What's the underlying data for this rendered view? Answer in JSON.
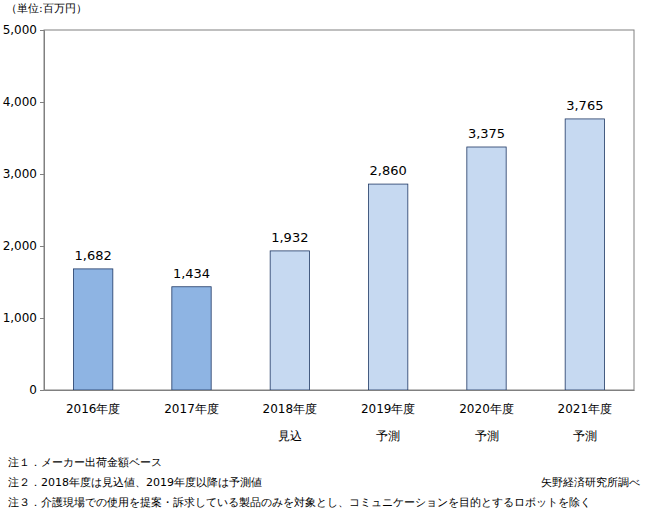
{
  "chart_data": {
    "type": "bar",
    "unit_label": "（単位:百万円）",
    "categories": [
      "2016年度",
      "2017年度",
      "2018年度",
      "2019年度",
      "2020年度",
      "2021年度"
    ],
    "category_sublabels": [
      null,
      null,
      "見込",
      "予測",
      "予測",
      "予測"
    ],
    "values": [
      1682,
      1434,
      1932,
      2860,
      3375,
      3765
    ],
    "value_labels": [
      "1,682",
      "1,434",
      "1,932",
      "2,860",
      "3,375",
      "3,765"
    ],
    "colors": [
      "#8eb4e3",
      "#8eb4e3",
      "#c6d9f1",
      "#c6d9f1",
      "#c6d9f1",
      "#c6d9f1"
    ],
    "data_labels": true,
    "grid": false,
    "ylim": [
      0,
      5000
    ],
    "yticks": [
      0,
      {
        "value": 1000,
        "label": "1,000"
      },
      {
        "value": 2000,
        "label": "2,000"
      },
      {
        "value": 3000,
        "label": "3,000"
      },
      {
        "value": 4000,
        "label": "4,000"
      },
      {
        "value": 5000,
        "label": "5,000"
      }
    ],
    "notes": [
      "注１．メーカー出荷金額ベース",
      "注２．2018年度は見込値、2019年度以降は予測値",
      "注３．介護現場での使用を提案・訴求している製品のみを対象とし、コミュニケーションを目的とするロボットを除く"
    ],
    "source": "矢野経済研究所調べ"
  }
}
